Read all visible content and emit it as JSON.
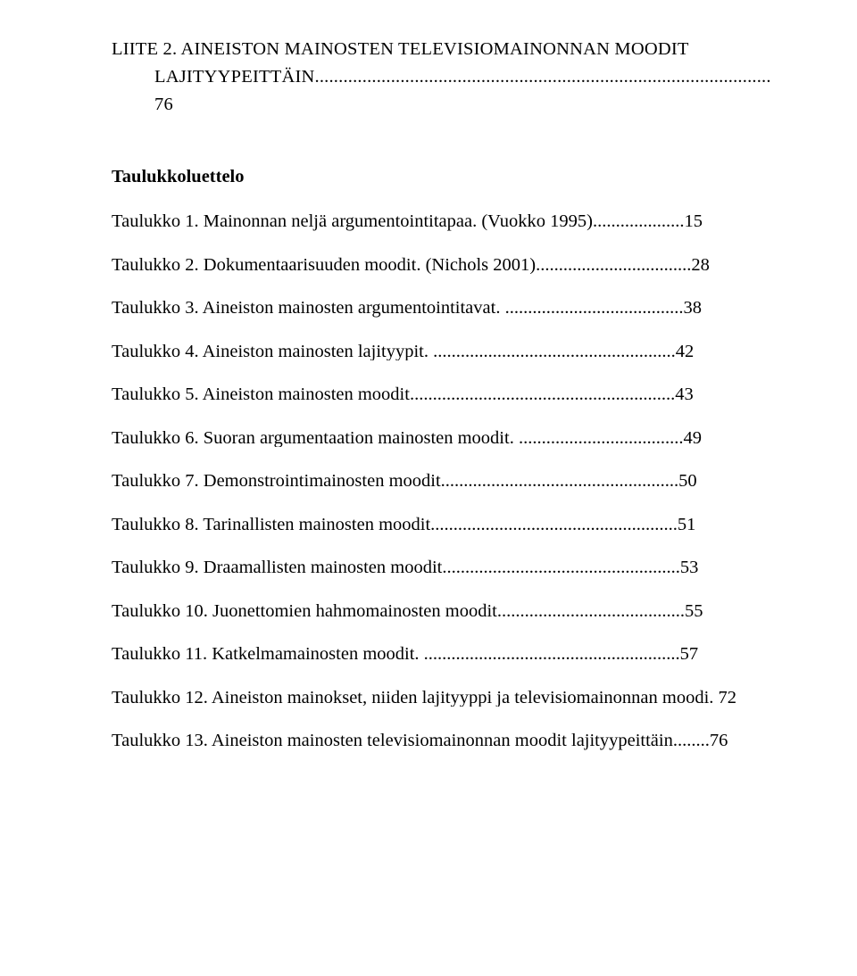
{
  "typography": {
    "font_family": "Times New Roman",
    "body_fontsize_pt": 15,
    "body_color": "#000000",
    "background_color": "#ffffff"
  },
  "heading": {
    "line1": "LIITE 2. AINEISTON MAINOSTEN TELEVISIOMAINONNAN MOODIT",
    "line2_label": "LAJITYYPEITTÄIN",
    "line2_dots": "................................................................................................ ",
    "line2_page": "76"
  },
  "section_title": "Taulukkoluettelo",
  "toc": [
    {
      "label": "Taulukko 1. Mainonnan neljä argumentointitapaa. (Vuokko 1995).",
      "dots": "...................",
      "page": "15"
    },
    {
      "label": "Taulukko 2. Dokumentaarisuuden moodit. (Nichols 2001).",
      "dots": ".................................",
      "page": "28"
    },
    {
      "label": "Taulukko 3. Aineiston mainosten argumentointitavat. ",
      "dots": ".......................................",
      "page": "38"
    },
    {
      "label": "Taulukko 4. Aineiston mainosten lajityypit. ",
      "dots": ".....................................................",
      "page": "42"
    },
    {
      "label": "Taulukko 5. Aineiston mainosten moodit.",
      "dots": ".........................................................",
      "page": "43"
    },
    {
      "label": "Taulukko 6. Suoran argumentaation mainosten moodit. ",
      "dots": "....................................",
      "page": "49"
    },
    {
      "label": "Taulukko 7. Demonstrointimainosten moodit.",
      "dots": "...................................................",
      "page": "50"
    },
    {
      "label": "Taulukko 8. Tarinallisten mainosten moodit.",
      "dots": ".....................................................",
      "page": "51"
    },
    {
      "label": "Taulukko 9. Draamallisten mainosten moodit.",
      "dots": "...................................................",
      "page": "53"
    },
    {
      "label": "Taulukko 10. Juonettomien hahmomainosten moodit.",
      "dots": "........................................",
      "page": "55"
    },
    {
      "label": "Taulukko 11. Katkelmamainosten moodit. ",
      "dots": "........................................................",
      "page": "57"
    },
    {
      "label": "Taulukko 12. Aineiston mainokset, niiden lajityyppi ja televisiomainonnan moodi. ",
      "dots": "",
      "page": "72"
    },
    {
      "label": "Taulukko 13. Aineiston mainosten televisiomainonnan moodit lajityypeittäin.",
      "dots": ".......",
      "page": "76"
    }
  ]
}
